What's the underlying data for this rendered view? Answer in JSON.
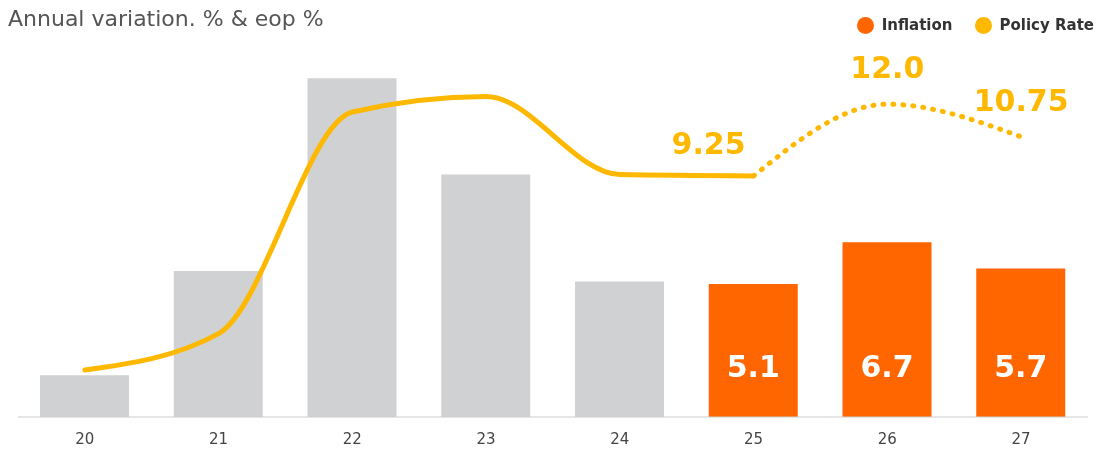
{
  "chart_data": {
    "type": "bar",
    "title": "Annual variation. % & eop %",
    "categories": [
      "20",
      "21",
      "22",
      "23",
      "24",
      "25",
      "26",
      "27"
    ],
    "series": [
      {
        "name": "Inflation",
        "color": "#ff6600",
        "colors": [
          "#d0d1d3",
          "#d0d1d3",
          "#d0d1d3",
          "#d0d1d3",
          "#d0d1d3",
          "#ff6600",
          "#ff6600",
          "#ff6600"
        ],
        "values": [
          1.6,
          5.6,
          13.0,
          9.3,
          5.2,
          5.1,
          6.7,
          5.7
        ],
        "value_labels": [
          null,
          null,
          null,
          null,
          null,
          "5.1",
          "6.7",
          "5.7"
        ]
      },
      {
        "type": "line",
        "name": "Policy Rate",
        "color": "#ffb800",
        "line_style": "solid",
        "values": [
          1.8,
          3.2,
          11.7,
          12.3,
          9.3,
          9.25,
          null,
          null
        ]
      },
      {
        "type": "line",
        "color": "#ffb800",
        "line_style": "dotted",
        "values": [
          null,
          null,
          null,
          null,
          null,
          9.25,
          12.0,
          10.75
        ],
        "value_labels": [
          null,
          null,
          null,
          null,
          null,
          "9.25",
          "12.0",
          "10.75"
        ]
      }
    ],
    "legend": "top right",
    "grid": false
  }
}
